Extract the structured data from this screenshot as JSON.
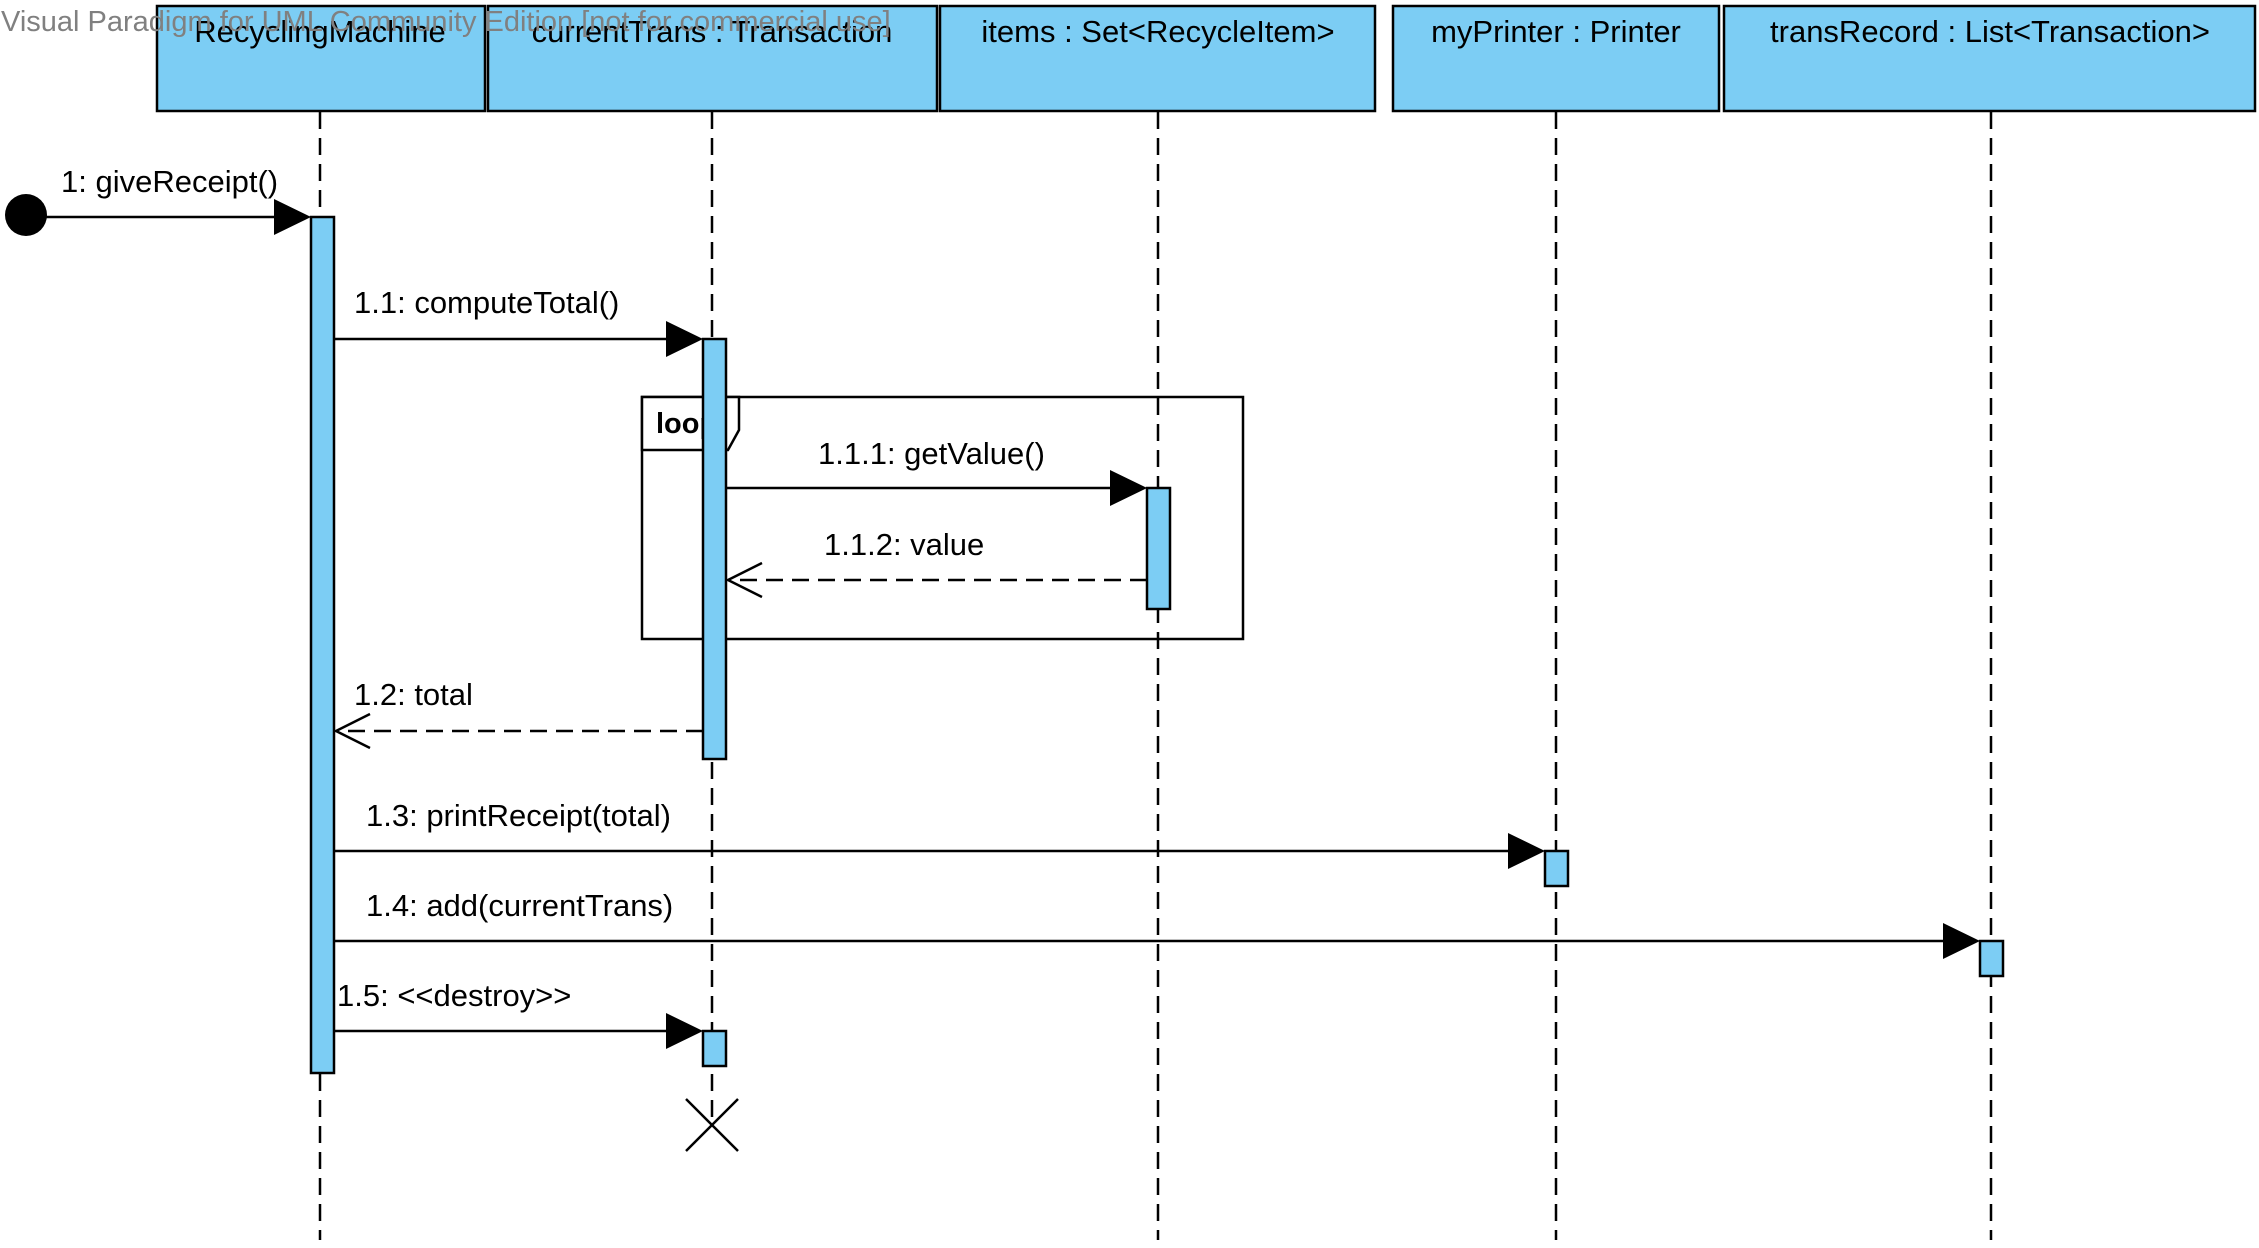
{
  "watermark": "Visual Paradigm for UML Community Edition [not for commercial use]",
  "colors": {
    "lifeline_fill": "#7ccdf4",
    "stroke": "#000000",
    "watermark": "#808080"
  },
  "lifelines": [
    {
      "id": "rm",
      "label": "RecyclingMachine"
    },
    {
      "id": "ct",
      "label": "currentTrans : Transaction"
    },
    {
      "id": "items",
      "label": "items : Set<RecycleItem>"
    },
    {
      "id": "printer",
      "label": "myPrinter : Printer"
    },
    {
      "id": "tr",
      "label": "transRecord : List<Transaction>"
    }
  ],
  "frame": {
    "operator": "loop"
  },
  "messages": [
    {
      "number": "1",
      "label": "1: giveReceipt()",
      "kind": "found-synchronous",
      "to": "rm"
    },
    {
      "number": "1.1",
      "label": "1.1: computeTotal()",
      "kind": "synchronous",
      "from": "rm",
      "to": "ct"
    },
    {
      "number": "1.1.1",
      "label": "1.1.1: getValue()",
      "kind": "synchronous",
      "from": "ct",
      "to": "items"
    },
    {
      "number": "1.1.2",
      "label": "1.1.2: value",
      "kind": "return",
      "from": "items",
      "to": "ct"
    },
    {
      "number": "1.2",
      "label": "1.2: total",
      "kind": "return",
      "from": "ct",
      "to": "rm"
    },
    {
      "number": "1.3",
      "label": "1.3: printReceipt(total)",
      "kind": "synchronous",
      "from": "rm",
      "to": "printer"
    },
    {
      "number": "1.4",
      "label": "1.4: add(currentTrans)",
      "kind": "synchronous",
      "from": "rm",
      "to": "tr"
    },
    {
      "number": "1.5",
      "label": "1.5: <<destroy>>",
      "kind": "destroy",
      "from": "rm",
      "to": "ct"
    }
  ]
}
